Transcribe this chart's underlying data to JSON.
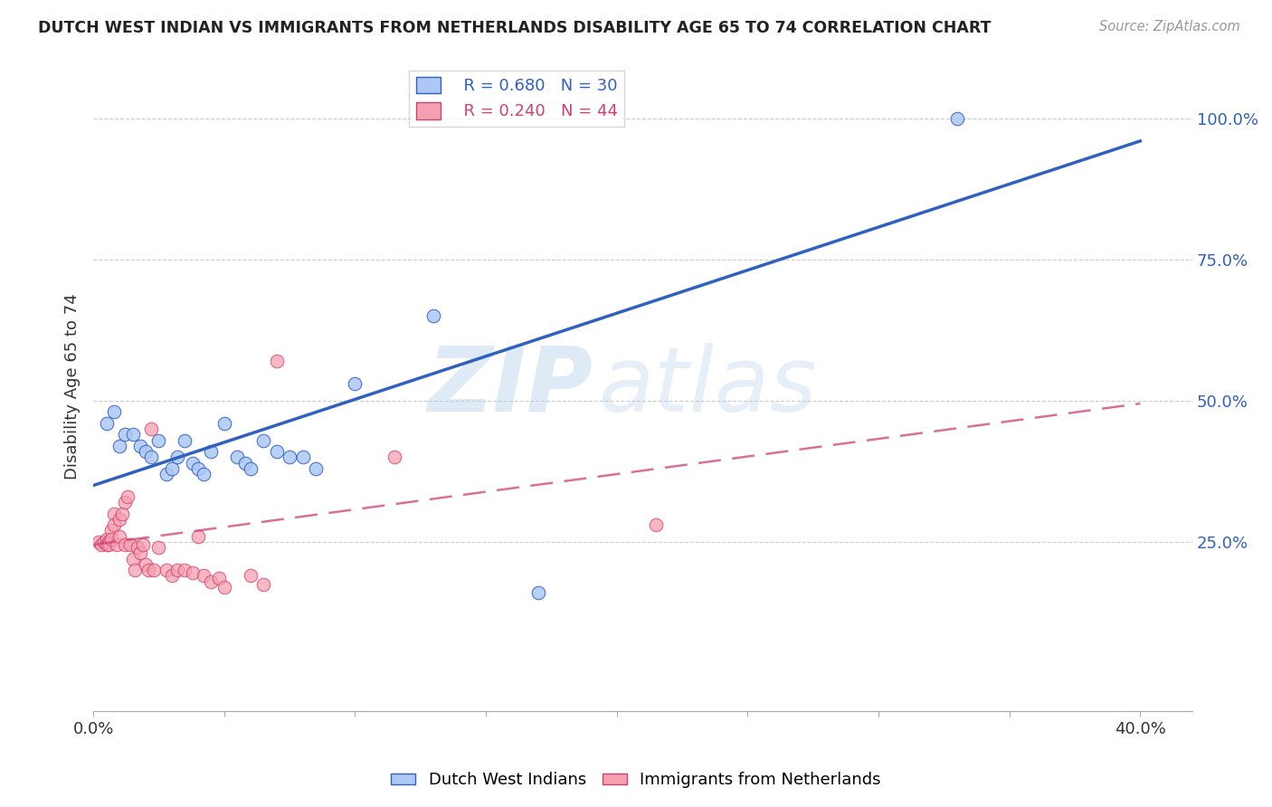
{
  "title": "DUTCH WEST INDIAN VS IMMIGRANTS FROM NETHERLANDS DISABILITY AGE 65 TO 74 CORRELATION CHART",
  "source": "Source: ZipAtlas.com",
  "ylabel": "Disability Age 65 to 74",
  "xlim": [
    0.0,
    0.42
  ],
  "ylim": [
    -0.05,
    1.1
  ],
  "yticks": [
    0.25,
    0.5,
    0.75,
    1.0
  ],
  "ytick_labels": [
    "25.0%",
    "50.0%",
    "75.0%",
    "100.0%"
  ],
  "xticks": [
    0.0,
    0.05,
    0.1,
    0.15,
    0.2,
    0.25,
    0.3,
    0.35,
    0.4
  ],
  "xtick_labels": [
    "0.0%",
    "",
    "",
    "",
    "",
    "",
    "",
    "",
    "40.0%"
  ],
  "legend1_r": "R = 0.680",
  "legend1_n": "N = 30",
  "legend2_r": "R = 0.240",
  "legend2_n": "N = 44",
  "legend1_color": "#adc8f5",
  "legend2_color": "#f5a0b0",
  "trendline1_color": "#3060c0",
  "trendline2_color": "#d04070",
  "watermark_zip": "ZIP",
  "watermark_atlas": "atlas",
  "trendline1_x": [
    0.0,
    0.4
  ],
  "trendline1_y": [
    0.35,
    0.96
  ],
  "trendline2_x": [
    0.0,
    0.4
  ],
  "trendline2_y": [
    0.245,
    0.495
  ],
  "blue_dots": [
    [
      0.005,
      0.46
    ],
    [
      0.008,
      0.48
    ],
    [
      0.01,
      0.42
    ],
    [
      0.012,
      0.44
    ],
    [
      0.015,
      0.44
    ],
    [
      0.018,
      0.42
    ],
    [
      0.02,
      0.41
    ],
    [
      0.022,
      0.4
    ],
    [
      0.025,
      0.43
    ],
    [
      0.028,
      0.37
    ],
    [
      0.03,
      0.38
    ],
    [
      0.032,
      0.4
    ],
    [
      0.035,
      0.43
    ],
    [
      0.038,
      0.39
    ],
    [
      0.04,
      0.38
    ],
    [
      0.042,
      0.37
    ],
    [
      0.045,
      0.41
    ],
    [
      0.05,
      0.46
    ],
    [
      0.055,
      0.4
    ],
    [
      0.058,
      0.39
    ],
    [
      0.06,
      0.38
    ],
    [
      0.065,
      0.43
    ],
    [
      0.07,
      0.41
    ],
    [
      0.075,
      0.4
    ],
    [
      0.08,
      0.4
    ],
    [
      0.085,
      0.38
    ],
    [
      0.1,
      0.53
    ],
    [
      0.13,
      0.65
    ],
    [
      0.17,
      0.16
    ],
    [
      0.33,
      1.0
    ]
  ],
  "pink_dots": [
    [
      0.002,
      0.25
    ],
    [
      0.003,
      0.245
    ],
    [
      0.004,
      0.25
    ],
    [
      0.005,
      0.255
    ],
    [
      0.005,
      0.245
    ],
    [
      0.006,
      0.25
    ],
    [
      0.006,
      0.245
    ],
    [
      0.007,
      0.27
    ],
    [
      0.007,
      0.255
    ],
    [
      0.008,
      0.3
    ],
    [
      0.008,
      0.28
    ],
    [
      0.009,
      0.245
    ],
    [
      0.01,
      0.29
    ],
    [
      0.01,
      0.26
    ],
    [
      0.011,
      0.3
    ],
    [
      0.012,
      0.32
    ],
    [
      0.012,
      0.245
    ],
    [
      0.013,
      0.33
    ],
    [
      0.014,
      0.245
    ],
    [
      0.015,
      0.22
    ],
    [
      0.016,
      0.2
    ],
    [
      0.017,
      0.24
    ],
    [
      0.018,
      0.23
    ],
    [
      0.019,
      0.245
    ],
    [
      0.02,
      0.21
    ],
    [
      0.021,
      0.2
    ],
    [
      0.022,
      0.45
    ],
    [
      0.023,
      0.2
    ],
    [
      0.025,
      0.24
    ],
    [
      0.028,
      0.2
    ],
    [
      0.03,
      0.19
    ],
    [
      0.032,
      0.2
    ],
    [
      0.035,
      0.2
    ],
    [
      0.038,
      0.195
    ],
    [
      0.04,
      0.26
    ],
    [
      0.042,
      0.19
    ],
    [
      0.045,
      0.18
    ],
    [
      0.048,
      0.185
    ],
    [
      0.05,
      0.17
    ],
    [
      0.06,
      0.19
    ],
    [
      0.065,
      0.175
    ],
    [
      0.07,
      0.57
    ],
    [
      0.115,
      0.4
    ],
    [
      0.215,
      0.28
    ]
  ]
}
